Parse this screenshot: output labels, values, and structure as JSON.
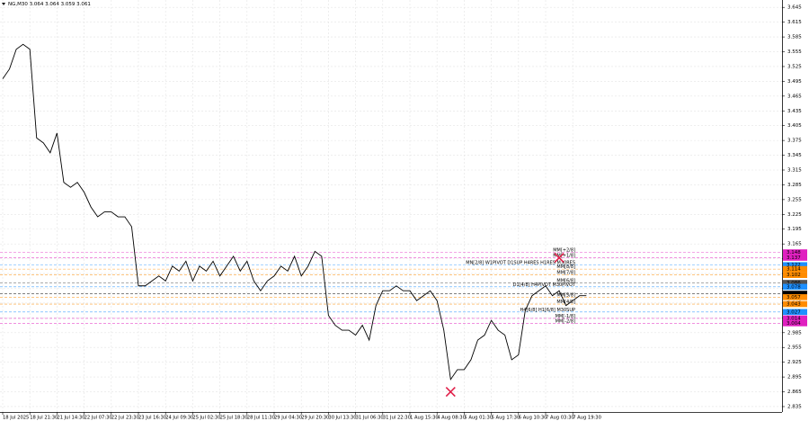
{
  "chart_data": {
    "type": "line",
    "title": "NG,M30  3.064 3.064 3.059 3.061",
    "categories": [
      "18 Jul 2025",
      null,
      null,
      null,
      "18 Jul 21:30",
      null,
      null,
      null,
      "21 Jul 14:30",
      null,
      null,
      null,
      "22 Jul 07:30",
      null,
      null,
      null,
      "22 Jul 23:30",
      null,
      null,
      null,
      "23 Jul 16:30",
      null,
      null,
      null,
      "24 Jul 09:30",
      null,
      null,
      null,
      "25 Jul 02:30",
      null,
      null,
      null,
      "25 Jul 18:30",
      null,
      null,
      null,
      "28 Jul 11:30",
      null,
      null,
      null,
      "29 Jul 04:30",
      null,
      null,
      null,
      "29 Jul 20:30",
      null,
      null,
      null,
      "30 Jul 13:30",
      null,
      null,
      null,
      "31 Jul 06:30",
      null,
      null,
      null,
      "31 Jul 22:30",
      null,
      null,
      null,
      "1 Aug 15:30",
      null,
      null,
      null,
      "4 Aug 08:30",
      null,
      null,
      null,
      "5 Aug 01:30",
      null,
      null,
      null,
      "5 Aug 17:30",
      null,
      null,
      null,
      "6 Aug 10:30",
      null,
      null,
      null,
      "7 Aug 03:30",
      null,
      null,
      null,
      "7 Aug 19:30",
      null,
      null
    ],
    "values": [
      3.5,
      3.52,
      3.56,
      3.57,
      3.56,
      3.38,
      3.37,
      3.35,
      3.39,
      3.29,
      3.28,
      3.29,
      3.27,
      3.24,
      3.22,
      3.23,
      3.23,
      3.22,
      3.22,
      3.2,
      3.08,
      3.08,
      3.09,
      3.1,
      3.09,
      3.12,
      3.11,
      3.13,
      3.09,
      3.12,
      3.11,
      3.13,
      3.1,
      3.12,
      3.14,
      3.11,
      3.13,
      3.09,
      3.07,
      3.09,
      3.1,
      3.12,
      3.11,
      3.14,
      3.1,
      3.12,
      3.15,
      3.14,
      3.02,
      3.0,
      2.99,
      2.99,
      2.98,
      3.0,
      2.97,
      3.04,
      3.07,
      3.07,
      3.08,
      3.07,
      3.07,
      3.05,
      3.06,
      3.07,
      3.05,
      2.99,
      2.89,
      2.91,
      2.91,
      2.93,
      2.97,
      2.98,
      3.01,
      2.99,
      2.98,
      2.93,
      2.94,
      3.03,
      3.06,
      3.07,
      3.08,
      3.06,
      3.07,
      3.04,
      3.05,
      3.06,
      3.06
    ],
    "color": "#000000",
    "ylim": [
      2.824,
      3.66
    ],
    "yticks": [
      3.645,
      3.615,
      3.585,
      3.555,
      3.525,
      3.495,
      3.465,
      3.435,
      3.405,
      3.375,
      3.345,
      3.315,
      3.285,
      3.255,
      3.225,
      3.195,
      3.165,
      3.135,
      3.105,
      3.075,
      3.045,
      3.015,
      2.985,
      2.955,
      2.925,
      2.895,
      2.865,
      2.835
    ],
    "grid": true,
    "levels": [
      {
        "value": 3.148,
        "label": "MM[+2/8]",
        "color": "#e020c0"
      },
      {
        "value": 3.137,
        "label": "MM[+1/8]",
        "color": "#e020c0"
      },
      {
        "value": 3.122,
        "label": "MN[2/8] W1PIVOT D1SUP H4RES H1RES M30RES",
        "color": "#1e90ff"
      },
      {
        "value": 3.114,
        "label": "MM[8/8]",
        "color": "#ff8c00"
      },
      {
        "value": 3.102,
        "label": "MM[7/8]",
        "color": "#ff8c00"
      },
      {
        "value": 3.086,
        "label": "MM[6/8]",
        "color": "#555555"
      },
      {
        "value": 3.078,
        "label": "D1[4/8] H4PIVOT M30PIVOT",
        "color": "#1e90ff"
      },
      {
        "value": 3.064,
        "color": "#000000"
      },
      {
        "value": 3.057,
        "label": "MM[5/8]",
        "color": "#ff8c00"
      },
      {
        "value": 3.043,
        "label": "MM[4/8]",
        "color": "#ff8c00"
      },
      {
        "value": 3.027,
        "label": "H4[6/8] H1[6/8] M30SUP",
        "color": "#1e90ff"
      },
      {
        "value": 3.014,
        "label": "MM[-1/8]",
        "color": "#e020c0"
      },
      {
        "value": 3.004,
        "label": "MM[-2/8]",
        "color": "#e020c0"
      }
    ],
    "markers": [
      {
        "index": 82,
        "value": 3.137,
        "color": "#e0204a"
      },
      {
        "index": 66,
        "value": 2.865,
        "color": "#e0204a"
      }
    ]
  }
}
